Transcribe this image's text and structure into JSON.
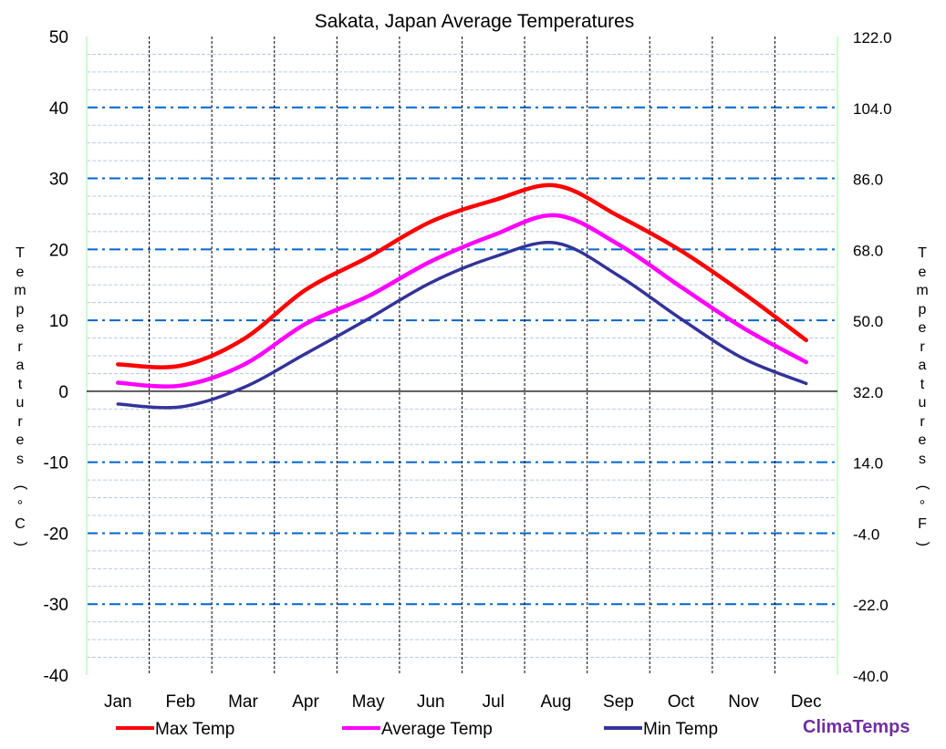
{
  "chart_data": {
    "type": "line",
    "title": "Sakata, Japan Average Temperatures",
    "categories": [
      "Jan",
      "Feb",
      "Mar",
      "Apr",
      "May",
      "Jun",
      "Jul",
      "Aug",
      "Sep",
      "Oct",
      "Nov",
      "Dec"
    ],
    "series": [
      {
        "name": "Max Temp",
        "color": "#ff0000",
        "values": [
          3.8,
          3.6,
          7.3,
          14.3,
          18.9,
          23.9,
          26.9,
          29.0,
          24.7,
          19.8,
          13.8,
          7.2
        ]
      },
      {
        "name": "Average Temp",
        "color": "#ff00ff",
        "values": [
          1.2,
          0.8,
          3.7,
          9.5,
          13.4,
          18.3,
          22.0,
          24.8,
          20.7,
          14.7,
          8.9,
          4.1
        ]
      },
      {
        "name": "Min Temp",
        "color": "#333399",
        "values": [
          -1.8,
          -2.2,
          0.5,
          5.3,
          10.2,
          15.3,
          18.9,
          20.9,
          16.3,
          10.2,
          4.6,
          1.1
        ]
      }
    ],
    "ylabel": "Temperatures (°C)",
    "y2label": "Temperatures (°F)",
    "ylim": [
      -40,
      50
    ],
    "y2lim": [
      -40.0,
      122.0
    ],
    "yticks": [
      "50",
      "40",
      "30",
      "20",
      "10",
      "0",
      "-10",
      "-20",
      "-30",
      "-40"
    ],
    "y2ticks": [
      "122.0",
      "104.0",
      "86.0",
      "68.0",
      "50.0",
      "32.0",
      "14.0",
      "-4.0",
      "-22.0",
      "-40.0"
    ],
    "grid": true,
    "legend": "bottom"
  },
  "brand": "ClimaTemps"
}
